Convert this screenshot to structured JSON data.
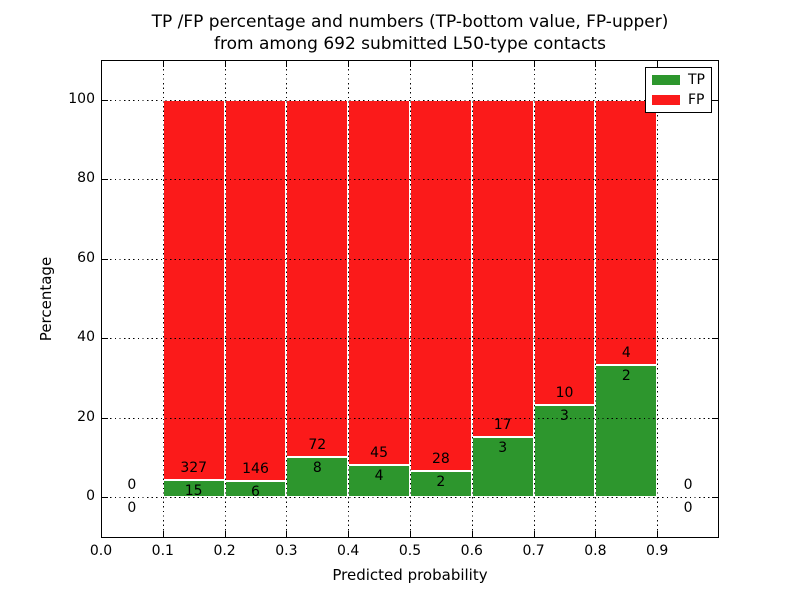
{
  "figure": {
    "title_line1": "TP /FP percentage and numbers (TP-bottom value, FP-upper)",
    "title_line2": "from among 692 submitted L50-type contacts"
  },
  "axes": {
    "xlabel": "Predicted probability",
    "ylabel": "Percentage",
    "xtick_labels": [
      "0.0",
      "0.1",
      "0.2",
      "0.3",
      "0.4",
      "0.5",
      "0.6",
      "0.7",
      "0.8",
      "0.9"
    ],
    "ytick_labels": [
      "0",
      "20",
      "40",
      "60",
      "80",
      "100"
    ]
  },
  "legend": {
    "items": [
      {
        "label": "TP",
        "color": "#2d962d"
      },
      {
        "label": "FP",
        "color": "#fb1a1a"
      }
    ]
  },
  "chart_data": {
    "type": "bar",
    "variant": "stacked-percentage",
    "title": "TP /FP percentage and numbers (TP-bottom value, FP-upper) from among 692 submitted L50-type contacts",
    "xlabel": "Predicted probability",
    "ylabel": "Percentage",
    "total_submitted": 692,
    "xlim": [
      0.0,
      1.0
    ],
    "ylim": [
      -10,
      110
    ],
    "xticks": [
      0.0,
      0.1,
      0.2,
      0.3,
      0.4,
      0.5,
      0.6,
      0.7,
      0.8,
      0.9
    ],
    "yticks": [
      0,
      20,
      40,
      60,
      80,
      100
    ],
    "grid": "dotted-black-above-bars",
    "legend_position": "upper-right",
    "bin_edges": [
      0.0,
      0.1,
      0.2,
      0.3,
      0.4,
      0.5,
      0.6,
      0.7,
      0.8,
      0.9,
      1.0
    ],
    "series": [
      {
        "name": "TP",
        "color": "#2d962d",
        "counts": [
          0,
          15,
          6,
          8,
          4,
          2,
          3,
          3,
          2,
          0
        ]
      },
      {
        "name": "FP",
        "color": "#fb1a1a",
        "counts": [
          0,
          327,
          146,
          72,
          45,
          28,
          17,
          10,
          4,
          0
        ]
      }
    ],
    "tp_percent_per_bin": [
      0,
      4.4,
      3.9,
      10.0,
      8.2,
      6.7,
      15.0,
      23.1,
      33.3,
      0
    ]
  }
}
